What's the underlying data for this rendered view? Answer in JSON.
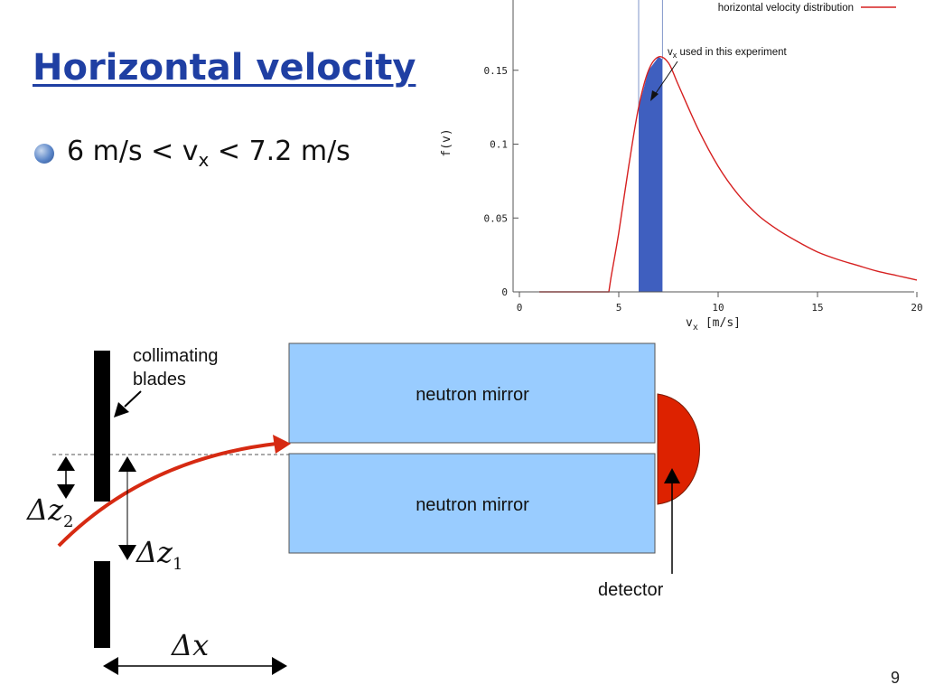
{
  "slide": {
    "title": "Horizontal velocity",
    "bullet": {
      "prefix": "6 m/s < v",
      "sub": "x",
      "suffix": " < 7.2 m/s"
    },
    "page_number": "9"
  },
  "chart_data": {
    "type": "line",
    "xlabel": "v",
    "xlabel_sub": "x",
    "xlabel_unit": "[m/s]",
    "ylabel": "f(v)",
    "xlim": [
      0,
      20
    ],
    "ylim": [
      0,
      0.2
    ],
    "x_ticks": [
      0,
      5,
      10,
      15,
      20
    ],
    "y_ticks": [
      0,
      0.05,
      0.1,
      0.15
    ],
    "x_tick_labels": [
      "0",
      "5",
      "10",
      "15",
      "20"
    ],
    "y_tick_labels": [
      "0",
      "0.05",
      "0.1",
      "0.15"
    ],
    "legend": {
      "label": "horizontal velocity distribution",
      "position": "top-right"
    },
    "annotation": {
      "text_main": "v",
      "text_sub": "x",
      "text_rest": " used in this experiment"
    },
    "selected_range": [
      6,
      7.2
    ],
    "series": [
      {
        "name": "horizontal velocity distribution",
        "color": "#d62020",
        "x": [
          1,
          4.5,
          4.6,
          5.0,
          5.5,
          6.0,
          6.5,
          7.0,
          7.5,
          8,
          9,
          10,
          11,
          12,
          13,
          14,
          15,
          16,
          17,
          18,
          19,
          20
        ],
        "y": [
          0,
          0,
          0.009,
          0.04,
          0.085,
          0.125,
          0.15,
          0.159,
          0.155,
          0.14,
          0.11,
          0.085,
          0.066,
          0.052,
          0.042,
          0.034,
          0.027,
          0.022,
          0.018,
          0.014,
          0.011,
          0.008
        ]
      }
    ],
    "colors": {
      "curve": "#d62020",
      "fill": "#3f5fbf"
    }
  },
  "diagram": {
    "labels": {
      "collimating_blades": [
        "collimating",
        "blades"
      ],
      "mirror_top": "neutron mirror",
      "mirror_bottom": "neutron mirror",
      "detector": "detector",
      "dz2": {
        "main": "Δz",
        "sub": "2"
      },
      "dz1": {
        "main": "Δz",
        "sub": "1"
      },
      "dx": "Δx"
    },
    "colors": {
      "mirror": "#99CCFF",
      "detector": "#DD2200",
      "trajectory": "#d62a12",
      "blade": "#000000"
    }
  }
}
